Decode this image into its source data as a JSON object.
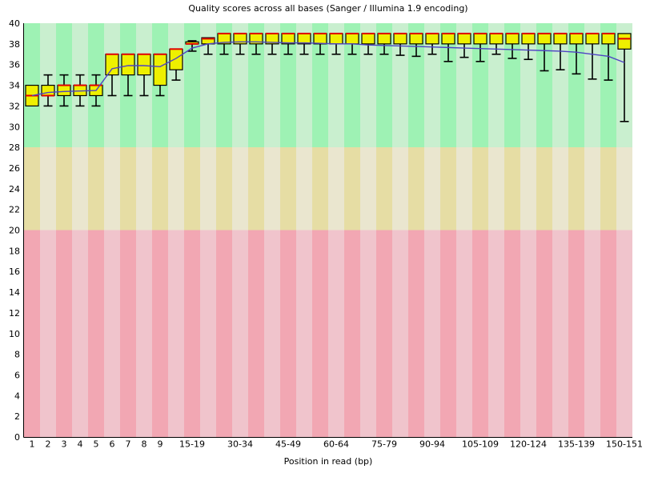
{
  "chart_data": {
    "type": "boxplot",
    "title": "Quality scores across all bases (Sanger / Illumina 1.9 encoding)",
    "xlabel": "Position in read (bp)",
    "ylabel": "",
    "ylim": [
      0,
      40
    ],
    "y_ticks": [
      0,
      2,
      4,
      6,
      8,
      10,
      12,
      14,
      16,
      18,
      20,
      22,
      24,
      26,
      28,
      30,
      32,
      34,
      36,
      38,
      40
    ],
    "grid": "off",
    "legend": "none",
    "categories": [
      "1",
      "2",
      "3",
      "4",
      "5",
      "6",
      "7",
      "8",
      "9",
      "",
      "15-19",
      "",
      "",
      "30-34",
      "",
      "",
      "45-49",
      "",
      "",
      "60-64",
      "",
      "",
      "75-79",
      "",
      "",
      "90-94",
      "",
      "",
      "105-109",
      "",
      "",
      "120-124",
      "",
      "",
      "135-139",
      "",
      "",
      "150-151"
    ],
    "boxes": {
      "q1": [
        32,
        33,
        33,
        33,
        33,
        35,
        35,
        35,
        34,
        35.5,
        38,
        38,
        38,
        38,
        38,
        38,
        38,
        38,
        38,
        38,
        38,
        38,
        38,
        38,
        38,
        38,
        38,
        38,
        38,
        38,
        38,
        38,
        38,
        38,
        38,
        38,
        38,
        37.5
      ],
      "q3": [
        34,
        34,
        34,
        34,
        34,
        37,
        37,
        37,
        37,
        37.5,
        38.2,
        38.6,
        39,
        39,
        39,
        39,
        39,
        39,
        39,
        39,
        39,
        39,
        39,
        39,
        39,
        39,
        39,
        39,
        39,
        39,
        39,
        39,
        39,
        39,
        39,
        39,
        39,
        39
      ],
      "median": [
        33,
        33,
        34,
        34,
        34,
        37,
        37,
        37,
        37,
        37.5,
        38,
        38.5,
        39,
        39,
        39,
        39,
        39,
        39,
        39,
        39,
        39,
        39,
        39,
        39,
        39,
        39,
        39,
        39,
        39,
        39,
        39,
        39,
        39,
        39,
        39,
        39,
        39,
        38.5
      ],
      "whisker_low": [
        32,
        32,
        32,
        32,
        32,
        33,
        33,
        33,
        33,
        34.5,
        37.3,
        37,
        37,
        37,
        37,
        37,
        37,
        37,
        37,
        37,
        37,
        37,
        37,
        36.9,
        36.8,
        37,
        36.3,
        36.7,
        36.3,
        37,
        36.6,
        36.5,
        35.4,
        35.5,
        35.1,
        34.6,
        34.5,
        30.5
      ],
      "whisker_high": [
        34,
        35,
        35,
        35,
        35,
        37,
        37,
        37,
        37,
        37.5,
        38.3,
        38.6,
        39,
        39,
        39,
        39,
        39,
        39,
        39,
        39,
        39,
        39,
        39,
        39,
        39,
        39,
        39,
        39,
        39,
        39,
        39,
        39,
        39,
        39,
        39,
        39,
        39,
        39
      ],
      "mean": [
        33.0,
        33.3,
        33.4,
        33.45,
        33.5,
        35.6,
        35.9,
        35.9,
        35.8,
        36.6,
        37.6,
        38.0,
        38.15,
        38.2,
        38.2,
        38.15,
        38.1,
        38.1,
        38.05,
        38.0,
        38.0,
        37.9,
        37.85,
        37.8,
        37.75,
        37.7,
        37.65,
        37.6,
        37.55,
        37.5,
        37.45,
        37.4,
        37.35,
        37.3,
        37.2,
        37.0,
        36.8,
        36.2
      ]
    },
    "zones": [
      {
        "range": [
          28,
          40
        ],
        "color_dark": "#9ef2b4",
        "color_light": "#c9efcf"
      },
      {
        "range": [
          20,
          28
        ],
        "color_dark": "#e6dda4",
        "color_light": "#eae6cf"
      },
      {
        "range": [
          0,
          20
        ],
        "color_dark": "#f2a7b3",
        "color_light": "#f0c4cc"
      }
    ],
    "colors": {
      "box_fill": "#eef000",
      "box_border": "#000000",
      "median": "#e00000",
      "mean_line": "#4f43c4",
      "axis": "#000000"
    }
  }
}
